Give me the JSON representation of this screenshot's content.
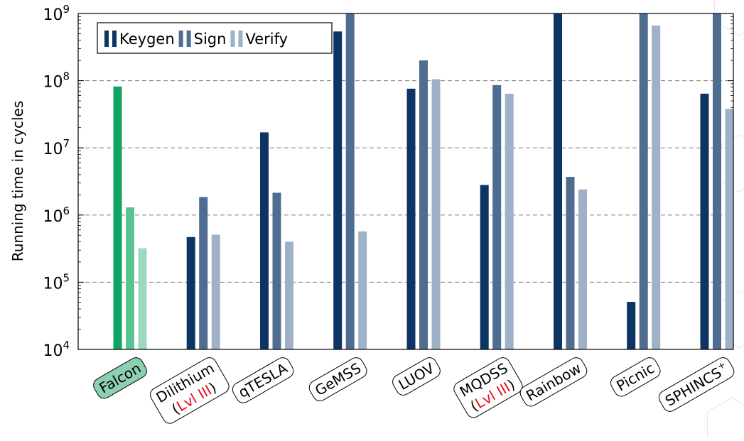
{
  "chart_data": {
    "type": "bar",
    "scale": "log",
    "ylabel": "Running time in cycles",
    "ylim": [
      10000,
      1000000000
    ],
    "y_ticks": [
      {
        "value": 10000,
        "base": "10",
        "exp": "4"
      },
      {
        "value": 100000,
        "base": "10",
        "exp": "5"
      },
      {
        "value": 1000000,
        "base": "10",
        "exp": "6"
      },
      {
        "value": 10000000,
        "base": "10",
        "exp": "7"
      },
      {
        "value": 100000000,
        "base": "10",
        "exp": "8"
      },
      {
        "value": 1000000000,
        "base": "10",
        "exp": "9"
      }
    ],
    "grid": "horizontal dashed",
    "legend_position": "top-left",
    "legend": [
      "Keygen",
      "Sign",
      "Verify"
    ],
    "categories": [
      {
        "lines": [
          [
            {
              "t": "Falcon"
            }
          ]
        ],
        "highlight": true
      },
      {
        "lines": [
          [
            {
              "t": "Dilithium"
            }
          ],
          [
            {
              "t": "("
            },
            {
              "t": "Lvl III",
              "c": "#e8101a"
            },
            {
              "t": ")"
            }
          ]
        ]
      },
      {
        "lines": [
          [
            {
              "t": "qTESLA"
            }
          ]
        ]
      },
      {
        "lines": [
          [
            {
              "t": "GeMSS"
            }
          ]
        ]
      },
      {
        "lines": [
          [
            {
              "t": "LUOV"
            }
          ]
        ]
      },
      {
        "lines": [
          [
            {
              "t": "MQDSS"
            }
          ],
          [
            {
              "t": "("
            },
            {
              "t": "Lvl III",
              "c": "#e8101a"
            },
            {
              "t": ")"
            }
          ]
        ]
      },
      {
        "lines": [
          [
            {
              "t": "Rainbow"
            }
          ]
        ]
      },
      {
        "lines": [
          [
            {
              "t": "Picnic"
            }
          ]
        ]
      },
      {
        "lines": [
          [
            {
              "t": "SPHINCS"
            },
            {
              "t": "+",
              "sup": true
            }
          ]
        ]
      }
    ],
    "series": [
      {
        "name": "Keygen",
        "values": [
          82000000,
          470000,
          17000000,
          540000000,
          76000000,
          2800000,
          1000000000,
          51000,
          64000000
        ]
      },
      {
        "name": "Sign",
        "values": [
          1300000,
          1850000,
          2150000,
          1000000000,
          200000000,
          86000000,
          3700000,
          1000000000,
          1000000000
        ]
      },
      {
        "name": "Verify",
        "values": [
          320000,
          510000,
          400000,
          570000,
          105000000,
          64000000,
          2400000,
          660000000,
          38000000
        ]
      }
    ],
    "colors": {
      "Keygen": "#0d3563",
      "Sign": "#4e6d91",
      "Verify": "#9eb1c7",
      "highlight": [
        "#10a565",
        "#57c391",
        "#9dd9bd"
      ],
      "highlight_label_bg": "#8ccfb1"
    }
  }
}
